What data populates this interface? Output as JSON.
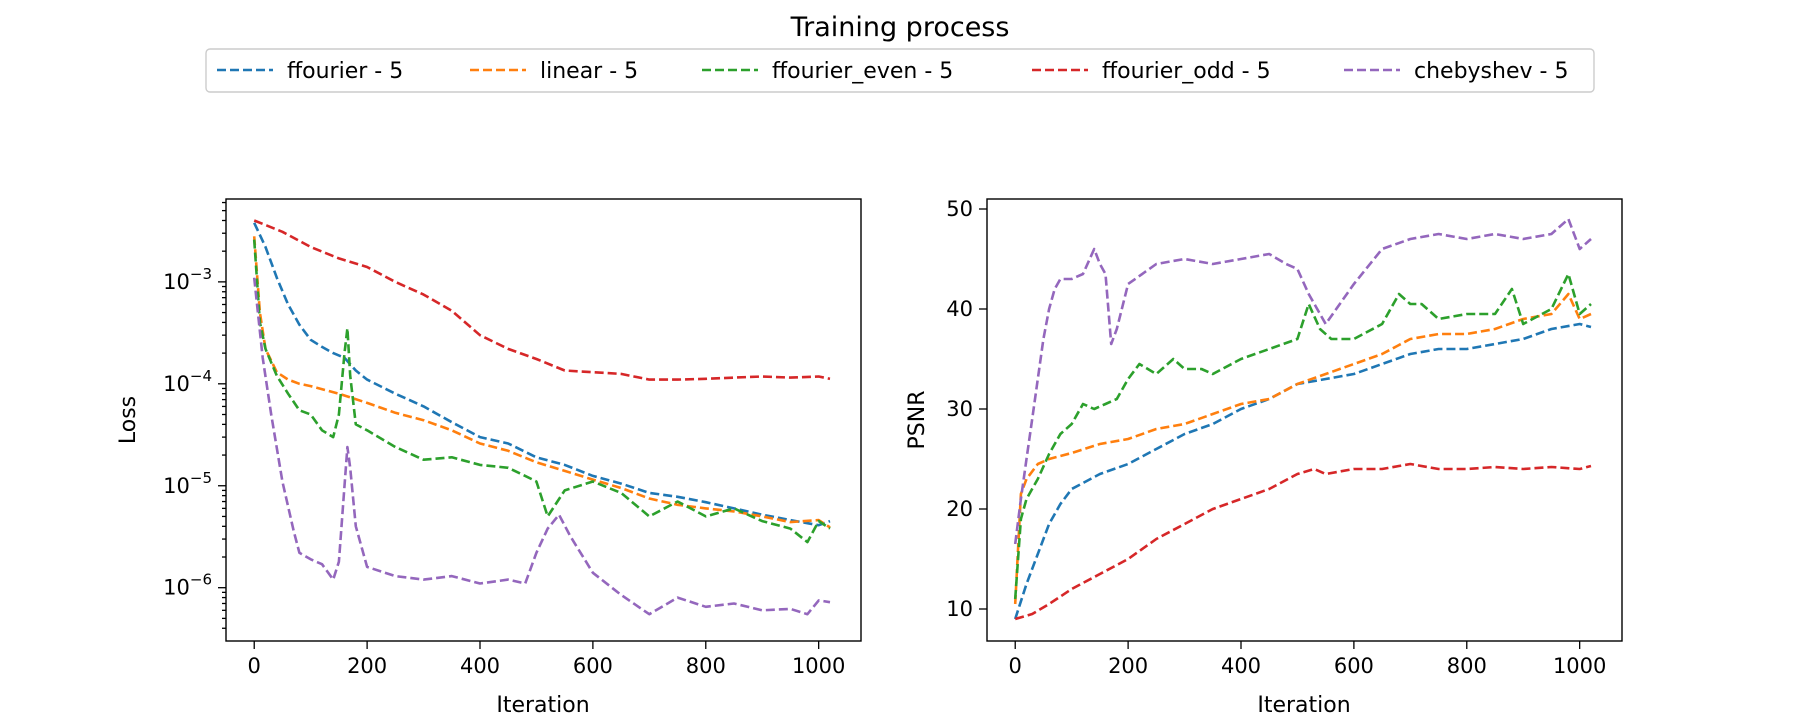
{
  "figure": {
    "title": "Training process"
  },
  "chart_data": [
    {
      "type": "line",
      "title": "",
      "xlabel": "Iteration",
      "ylabel": "Loss",
      "yscale": "log",
      "xlim": [
        -50,
        1075
      ],
      "ylim": [
        3e-07,
        0.0065
      ],
      "xticks": [
        0,
        200,
        400,
        600,
        800,
        1000
      ],
      "xtick_labels": [
        "0",
        "200",
        "400",
        "600",
        "800",
        "1000"
      ],
      "yticks": [
        1e-06,
        1e-05,
        0.0001,
        0.001
      ],
      "ytick_labels": [
        "10",
        "10",
        "10",
        "10"
      ],
      "ytick_exponents": [
        "−6",
        "−5",
        "−4",
        "−3"
      ],
      "grid": false,
      "series": [
        {
          "name": "ffourier - 5",
          "color": "#1f77b4",
          "x": [
            0,
            20,
            40,
            60,
            80,
            100,
            120,
            140,
            160,
            180,
            200,
            250,
            300,
            350,
            400,
            450,
            500,
            550,
            600,
            650,
            700,
            750,
            800,
            850,
            900,
            950,
            1000,
            1020
          ],
          "y": [
            0.0038,
            0.0022,
            0.0011,
            0.0006,
            0.00038,
            0.00027,
            0.00023,
            0.0002,
            0.00018,
            0.000135,
            0.00011,
            8e-05,
            6e-05,
            4.2e-05,
            3e-05,
            2.6e-05,
            1.9e-05,
            1.6e-05,
            1.25e-05,
            1.05e-05,
            8.5e-06,
            7.8e-06,
            6.9e-06,
            6e-06,
            5.2e-06,
            4.6e-06,
            4.1e-06,
            4.5e-06
          ]
        },
        {
          "name": "linear - 5",
          "color": "#ff7f0e",
          "x": [
            0,
            10,
            20,
            40,
            60,
            80,
            100,
            150,
            200,
            250,
            300,
            350,
            400,
            450,
            500,
            550,
            600,
            650,
            700,
            750,
            800,
            850,
            900,
            950,
            1000,
            1020
          ],
          "y": [
            0.0028,
            0.0005,
            0.00022,
            0.00013,
            0.00011,
            0.0001,
            9.5e-05,
            8e-05,
            6.5e-05,
            5.2e-05,
            4.4e-05,
            3.5e-05,
            2.6e-05,
            2.2e-05,
            1.7e-05,
            1.4e-05,
            1.15e-05,
            9.5e-06,
            7.5e-06,
            6.5e-06,
            6e-06,
            5.6e-06,
            5e-06,
            4.4e-06,
            4.6e-06,
            3.9e-06
          ]
        },
        {
          "name": "ffourier_even - 5",
          "color": "#2ca02c",
          "x": [
            0,
            10,
            20,
            40,
            60,
            80,
            100,
            120,
            140,
            150,
            160,
            165,
            170,
            180,
            200,
            250,
            300,
            350,
            400,
            450,
            480,
            500,
            520,
            550,
            600,
            650,
            700,
            750,
            800,
            850,
            900,
            950,
            980,
            1000,
            1020
          ],
          "y": [
            0.0026,
            0.0004,
            0.00022,
            0.00012,
            8e-05,
            5.5e-05,
            5e-05,
            3.5e-05,
            3e-05,
            5e-05,
            0.0002,
            0.00035,
            0.00012,
            4e-05,
            3.5e-05,
            2.4e-05,
            1.8e-05,
            1.9e-05,
            1.6e-05,
            1.5e-05,
            1.25e-05,
            1.1e-05,
            5e-06,
            9e-06,
            1.1e-05,
            8.5e-06,
            5e-06,
            7e-06,
            5e-06,
            6e-06,
            4.5e-06,
            3.8e-06,
            2.8e-06,
            4.5e-06,
            3.8e-06
          ]
        },
        {
          "name": "ffourier_odd - 5",
          "color": "#d62728",
          "x": [
            0,
            50,
            100,
            150,
            200,
            250,
            300,
            350,
            400,
            450,
            500,
            550,
            600,
            650,
            700,
            750,
            800,
            850,
            900,
            950,
            1000,
            1020
          ],
          "y": [
            0.004,
            0.0031,
            0.0022,
            0.0017,
            0.0014,
            0.001,
            0.00075,
            0.00052,
            0.0003,
            0.00022,
            0.000175,
            0.000135,
            0.00013,
            0.000125,
            0.00011,
            0.00011,
            0.000112,
            0.000115,
            0.000118,
            0.000115,
            0.000118,
            0.000112
          ]
        },
        {
          "name": "chebyshev - 5",
          "color": "#9467bd",
          "x": [
            0,
            15,
            30,
            50,
            70,
            80,
            100,
            120,
            140,
            150,
            160,
            165,
            170,
            180,
            200,
            250,
            300,
            350,
            400,
            450,
            480,
            500,
            520,
            540,
            560,
            600,
            650,
            700,
            750,
            800,
            850,
            900,
            950,
            980,
            1000,
            1020
          ],
          "y": [
            0.0011,
            0.00018,
            5e-05,
            1.1e-05,
            3.6e-06,
            2.2e-06,
            1.9e-06,
            1.7e-06,
            1.2e-06,
            1.8e-06,
            1e-05,
            2.4e-05,
            1.5e-05,
            4e-06,
            1.6e-06,
            1.3e-06,
            1.2e-06,
            1.3e-06,
            1.1e-06,
            1.2e-06,
            1.1e-06,
            2.2e-06,
            3.8e-06,
            5.2e-06,
            3.2e-06,
            1.4e-06,
            8.5e-07,
            5.5e-07,
            8e-07,
            6.5e-07,
            7e-07,
            6e-07,
            6.2e-07,
            5.5e-07,
            7.5e-07,
            7.2e-07
          ]
        }
      ]
    },
    {
      "type": "line",
      "title": "",
      "xlabel": "Iteration",
      "ylabel": "PSNR",
      "yscale": "linear",
      "xlim": [
        -50,
        1075
      ],
      "ylim": [
        6.8,
        51
      ],
      "xticks": [
        0,
        200,
        400,
        600,
        800,
        1000
      ],
      "xtick_labels": [
        "0",
        "200",
        "400",
        "600",
        "800",
        "1000"
      ],
      "yticks": [
        10,
        20,
        30,
        40,
        50
      ],
      "ytick_labels": [
        "10",
        "20",
        "30",
        "40",
        "50"
      ],
      "grid": false,
      "series": [
        {
          "name": "ffourier - 5",
          "color": "#1f77b4",
          "x": [
            0,
            20,
            40,
            60,
            80,
            100,
            150,
            200,
            250,
            300,
            350,
            400,
            450,
            500,
            550,
            600,
            650,
            700,
            750,
            800,
            850,
            900,
            950,
            1000,
            1020
          ],
          "y": [
            9,
            12.5,
            15.5,
            18.5,
            20.5,
            22,
            23.5,
            24.5,
            26,
            27.5,
            28.5,
            30,
            31,
            32.5,
            33,
            33.5,
            34.5,
            35.5,
            36,
            36,
            36.5,
            37,
            38,
            38.5,
            38.2
          ]
        },
        {
          "name": "linear - 5",
          "color": "#ff7f0e",
          "x": [
            0,
            10,
            20,
            40,
            60,
            80,
            100,
            150,
            200,
            250,
            300,
            350,
            400,
            450,
            500,
            550,
            600,
            650,
            700,
            750,
            800,
            850,
            900,
            950,
            980,
            1000,
            1020
          ],
          "y": [
            10.5,
            21.5,
            23,
            24.5,
            25,
            25.3,
            25.6,
            26.5,
            27,
            28,
            28.5,
            29.5,
            30.5,
            31,
            32.5,
            33.5,
            34.5,
            35.5,
            37,
            37.5,
            37.5,
            38,
            39,
            39.5,
            41.5,
            39,
            39.5
          ]
        },
        {
          "name": "ffourier_even - 5",
          "color": "#2ca02c",
          "x": [
            0,
            10,
            20,
            40,
            60,
            80,
            100,
            120,
            140,
            160,
            180,
            200,
            220,
            250,
            280,
            300,
            330,
            350,
            400,
            450,
            500,
            520,
            540,
            560,
            600,
            650,
            680,
            700,
            720,
            750,
            800,
            850,
            880,
            900,
            950,
            980,
            1000,
            1020
          ],
          "y": [
            11,
            19,
            21,
            23,
            25.5,
            27.5,
            28.5,
            30.5,
            30,
            30.5,
            31,
            33,
            34.5,
            33.5,
            35,
            34,
            34,
            33.5,
            35,
            36,
            37,
            40.5,
            38,
            37,
            37,
            38.5,
            41.5,
            40.5,
            40.5,
            39,
            39.5,
            39.5,
            42,
            38.5,
            40,
            43.5,
            39.5,
            40.5
          ]
        },
        {
          "name": "ffourier_odd - 5",
          "color": "#d62728",
          "x": [
            0,
            30,
            60,
            100,
            150,
            200,
            250,
            300,
            350,
            400,
            450,
            500,
            530,
            550,
            600,
            650,
            700,
            750,
            800,
            850,
            900,
            950,
            1000,
            1020
          ],
          "y": [
            9,
            9.5,
            10.5,
            12,
            13.5,
            15,
            17,
            18.5,
            20,
            21,
            22,
            23.5,
            24,
            23.5,
            24,
            24,
            24.5,
            24,
            24,
            24.2,
            24,
            24.2,
            24,
            24.3
          ]
        },
        {
          "name": "chebyshev - 5",
          "color": "#9467bd",
          "x": [
            0,
            10,
            20,
            30,
            40,
            50,
            60,
            70,
            80,
            100,
            120,
            140,
            150,
            160,
            170,
            180,
            200,
            250,
            300,
            350,
            400,
            450,
            480,
            500,
            520,
            550,
            600,
            650,
            700,
            750,
            800,
            850,
            900,
            950,
            980,
            1000,
            1020
          ],
          "y": [
            16.5,
            21,
            25,
            29,
            33,
            37,
            40,
            42,
            43,
            43,
            43.5,
            46,
            44.5,
            43.5,
            36.5,
            38,
            42.5,
            44.5,
            45,
            44.5,
            45,
            45.5,
            44.5,
            44,
            41.5,
            38.5,
            42.5,
            46,
            47,
            47.5,
            47,
            47.5,
            47,
            47.5,
            49,
            46,
            47
          ]
        }
      ]
    }
  ]
}
